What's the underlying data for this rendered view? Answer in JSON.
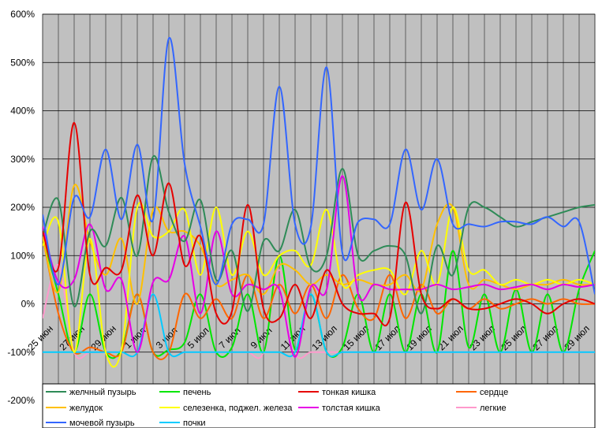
{
  "chart_data": {
    "type": "line",
    "title": "",
    "xlabel": "",
    "ylabel": "",
    "ylim": [
      -200,
      600
    ],
    "yticks": [
      -200,
      -100,
      0,
      100,
      200,
      300,
      400,
      500,
      600
    ],
    "ytick_labels": [
      "-200%",
      "-100%",
      "0%",
      "100%",
      "200%",
      "300%",
      "400%",
      "500%",
      "600%"
    ],
    "grid": true,
    "legend_position": "bottom",
    "x": [
      0,
      1,
      2,
      3,
      4,
      5,
      6,
      7,
      8,
      9,
      10,
      11,
      12,
      13,
      14,
      15,
      16,
      17,
      18,
      19,
      20,
      21,
      22,
      23,
      24,
      25,
      26,
      27,
      28,
      29,
      30,
      31,
      32,
      33,
      34,
      35
    ],
    "xticks": [
      0,
      2,
      4,
      6,
      8,
      10,
      12,
      14,
      16,
      18,
      20,
      22,
      24,
      26,
      28,
      30,
      32,
      34
    ],
    "xtick_labels": [
      "25 июн",
      "27 июн",
      "29 июн",
      "1 июл",
      "3 июл",
      "5 июл",
      "7 июл",
      "9 июл",
      "11 июл",
      "13 июл",
      "15 июл",
      "17 июл",
      "19 июл",
      "21 июл",
      "23 июл",
      "25 июл",
      "27 июл",
      "29 июл"
    ],
    "series": [
      {
        "name": "желчный пузырь",
        "color": "#2e8b57",
        "values": [
          140,
          215,
          -5,
          150,
          120,
          220,
          100,
          305,
          190,
          130,
          215,
          50,
          110,
          -15,
          130,
          110,
          195,
          75,
          100,
          280,
          100,
          110,
          120,
          100,
          -20,
          120,
          60,
          200,
          200,
          180,
          160,
          170,
          180,
          190,
          200,
          205
        ]
      },
      {
        "name": "печень",
        "color": "#00e600",
        "values": [
          140,
          20,
          -100,
          20,
          -100,
          -95,
          20,
          -100,
          -95,
          -80,
          20,
          -100,
          -90,
          20,
          -100,
          100,
          -95,
          20,
          -100,
          -90,
          20,
          -100,
          20,
          -100,
          20,
          -100,
          110,
          -90,
          20,
          -100,
          30,
          -100,
          20,
          -100,
          30,
          110
        ]
      },
      {
        "name": "тонкая кишка",
        "color": "#e60000",
        "values": [
          150,
          75,
          375,
          60,
          75,
          70,
          225,
          100,
          250,
          80,
          140,
          -20,
          -15,
          205,
          -10,
          -30,
          40,
          -30,
          70,
          0,
          -20,
          -20,
          -30,
          210,
          20,
          -10,
          10,
          -10,
          -10,
          0,
          10,
          0,
          -20,
          0,
          10,
          0
        ]
      },
      {
        "name": "сердце",
        "color": "#ff6600",
        "values": [
          140,
          -20,
          -100,
          -90,
          -100,
          -100,
          20,
          -100,
          -100,
          20,
          -30,
          10,
          -30,
          60,
          -30,
          40,
          -20,
          40,
          -30,
          60,
          -10,
          -30,
          60,
          -30,
          40,
          -20,
          10,
          -10,
          10,
          -10,
          0,
          10,
          0,
          10,
          0,
          0
        ]
      },
      {
        "name": "желудок",
        "color": "#ffc000",
        "values": [
          140,
          25,
          245,
          130,
          60,
          135,
          0,
          195,
          150,
          150,
          120,
          40,
          50,
          60,
          20,
          80,
          70,
          40,
          60,
          40,
          50,
          40,
          40,
          60,
          30,
          165,
          200,
          40,
          50,
          40,
          30,
          40,
          40,
          50,
          40,
          40
        ]
      },
      {
        "name": "селезенка, поджел. железа",
        "color": "#ffff00",
        "values": [
          120,
          170,
          -100,
          135,
          -100,
          -95,
          200,
          140,
          150,
          195,
          60,
          200,
          60,
          150,
          60,
          100,
          110,
          80,
          195,
          40,
          60,
          70,
          70,
          20,
          110,
          40,
          200,
          70,
          70,
          40,
          50,
          40,
          50,
          40,
          50,
          40
        ]
      },
      {
        "name": "толстая кишка",
        "color": "#e600e6",
        "values": [
          160,
          45,
          50,
          165,
          30,
          50,
          -100,
          45,
          50,
          140,
          -20,
          150,
          20,
          40,
          30,
          30,
          -110,
          35,
          30,
          265,
          20,
          40,
          30,
          30,
          30,
          40,
          30,
          35,
          40,
          30,
          35,
          40,
          30,
          40,
          35,
          40
        ]
      },
      {
        "name": "легкие",
        "color": "#ff99cc",
        "values": [
          -30,
          80,
          -100,
          -100,
          -100,
          -100,
          -100,
          20,
          -100,
          -100,
          -100,
          -100,
          -100,
          -100,
          -100,
          70,
          -100,
          -100,
          -100,
          -100,
          -100,
          -100,
          -100,
          -100,
          -100,
          -100,
          -100,
          -100,
          -100,
          -100,
          -100,
          -100,
          -100,
          -100,
          -100,
          -100
        ]
      },
      {
        "name": "мочевой пузырь",
        "color": "#3366ff",
        "values": [
          185,
          40,
          220,
          180,
          320,
          175,
          330,
          175,
          550,
          290,
          160,
          40,
          165,
          175,
          165,
          450,
          165,
          160,
          490,
          105,
          170,
          175,
          165,
          320,
          195,
          300,
          165,
          165,
          160,
          170,
          170,
          165,
          180,
          160,
          170,
          20
        ]
      },
      {
        "name": "почки",
        "color": "#00ccff",
        "values": [
          -100,
          -100,
          -100,
          -100,
          -100,
          -100,
          -100,
          20,
          -100,
          -100,
          -100,
          -100,
          -100,
          -100,
          -100,
          -100,
          -100,
          20,
          -100,
          -100,
          -100,
          -100,
          -100,
          -100,
          -100,
          -100,
          -100,
          -100,
          -100,
          -100,
          -100,
          -100,
          -100,
          -100,
          -100,
          -100
        ]
      }
    ]
  }
}
